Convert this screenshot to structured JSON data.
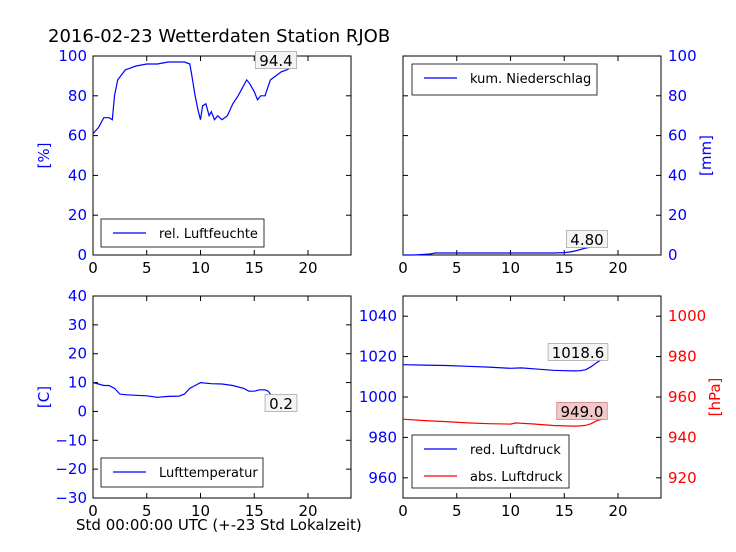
{
  "figure": {
    "title": "2016-02-23 Wetterdaten Station RJOB",
    "xlabel": "Std 00:00:00 UTC (+-23 Std Lokalzeit)",
    "colors": {
      "blue": "#0000ff",
      "red": "#ff0000",
      "annot_fill": "#f2c9c9"
    }
  },
  "chart_data": [
    {
      "type": "line",
      "xlim": [
        0,
        24
      ],
      "xticks": [
        "0",
        "5",
        "10",
        "15",
        "20"
      ],
      "ylim": [
        0,
        100
      ],
      "yticks": [
        "0",
        "20",
        "40",
        "60",
        "80",
        "100"
      ],
      "ylabel": "[%]",
      "grid": false,
      "legend_position": "lower-left",
      "annotation": "94.4",
      "series": [
        {
          "name": "rel. Luftfeuchte",
          "color": "#0000ff",
          "x": [
            0,
            0.5,
            1,
            1.5,
            1.8,
            2,
            2.3,
            3,
            4,
            5,
            6,
            7,
            8,
            8.5,
            9,
            9.2,
            9.5,
            9.8,
            10,
            10.2,
            10.5,
            10.8,
            11,
            11.3,
            11.6,
            12,
            12.5,
            13,
            13.5,
            14,
            14.3,
            14.6,
            15,
            15.3,
            15.6,
            16,
            16.5,
            17,
            17.5,
            18,
            18.5
          ],
          "y": [
            61,
            64,
            69,
            69,
            68,
            80,
            88,
            93,
            95,
            96,
            96,
            97,
            97,
            97,
            96,
            90,
            80,
            72,
            68,
            75,
            76,
            70,
            72,
            68,
            70,
            68,
            70,
            76,
            80,
            85,
            88,
            86,
            82,
            78,
            80,
            80,
            88,
            90,
            92,
            93,
            94.4
          ]
        }
      ]
    },
    {
      "type": "line",
      "xlim": [
        0,
        24
      ],
      "xticks": [
        "0",
        "5",
        "10",
        "15",
        "20"
      ],
      "ylim": [
        0,
        100
      ],
      "yticks": [
        "0",
        "20",
        "40",
        "60",
        "80",
        "100"
      ],
      "ylabel": "[mm]",
      "yaxis_side": "right",
      "grid": false,
      "legend_position": "upper-left",
      "annotation": "4.80",
      "series": [
        {
          "name": "kum. Niederschlag",
          "color": "#0000ff",
          "x": [
            0,
            1,
            2,
            2.5,
            3,
            5,
            10,
            14,
            15,
            15.5,
            16,
            17,
            18,
            18.5
          ],
          "y": [
            0,
            0,
            0.3,
            0.5,
            1,
            1,
            1,
            1,
            1.2,
            1.5,
            2,
            3.5,
            4.5,
            4.8
          ]
        }
      ]
    },
    {
      "type": "line",
      "xlim": [
        0,
        24
      ],
      "xticks": [
        "0",
        "5",
        "10",
        "15",
        "20"
      ],
      "ylim": [
        -30,
        40
      ],
      "yticks": [
        "−30",
        "−20",
        "−10",
        "0",
        "10",
        "20",
        "30",
        "40"
      ],
      "ylabel": "[C]",
      "grid": false,
      "legend_position": "lower-left",
      "annotation": "0.2",
      "series": [
        {
          "name": "Lufttemperatur",
          "color": "#0000ff",
          "x": [
            0,
            0.5,
            1,
            1.5,
            2,
            2.5,
            3,
            4,
            5,
            6,
            7,
            8,
            8.5,
            9,
            9.5,
            10,
            11,
            12,
            13,
            14,
            14.5,
            15,
            15.5,
            16,
            16.3,
            16.6,
            16.9
          ],
          "y": [
            10,
            9.5,
            9,
            9,
            8,
            6,
            5.8,
            5.6,
            5.4,
            4.9,
            5.2,
            5.3,
            6,
            8,
            9,
            10,
            9.6,
            9.5,
            9,
            8,
            7,
            7,
            7.5,
            7.5,
            7,
            5.5,
            2
          ]
        }
      ]
    },
    {
      "type": "line",
      "xlim": [
        0,
        24
      ],
      "xticks": [
        "0",
        "5",
        "10",
        "15",
        "20"
      ],
      "ylim": [
        950,
        1050
      ],
      "yticks": [
        "960",
        "980",
        "1000",
        "1020",
        "1040"
      ],
      "y2lim": [
        910,
        1010
      ],
      "y2ticks": [
        "920",
        "940",
        "960",
        "980",
        "1000"
      ],
      "y2label": "[hPa]",
      "grid": false,
      "legend_position": "lower-left",
      "series": [
        {
          "name": "red. Luftdruck",
          "color": "#0000ff",
          "axis": "left",
          "annotation": "1018.6",
          "x": [
            0,
            2,
            4,
            6,
            8,
            10,
            11,
            12,
            14,
            15,
            16,
            16.5,
            17,
            17.5,
            18,
            18.5
          ],
          "y": [
            1016,
            1015.8,
            1015.6,
            1015.2,
            1014.8,
            1014.2,
            1014.4,
            1014,
            1013.2,
            1013,
            1012.9,
            1013,
            1013.5,
            1015,
            1017,
            1018.6
          ]
        },
        {
          "name": "abs. Luftdruck",
          "color": "#ff0000",
          "axis": "right",
          "annotation": "949.0",
          "x": [
            0,
            2,
            4,
            6,
            8,
            10,
            10.5,
            11,
            12,
            14,
            15,
            16,
            16.5,
            17,
            17.5,
            18,
            18.5
          ],
          "y": [
            949,
            948.3,
            947.8,
            947.2,
            946.8,
            946.6,
            947.2,
            947,
            946.7,
            945.9,
            945.7,
            945.6,
            945.7,
            946,
            946.8,
            948.2,
            949
          ]
        }
      ]
    }
  ]
}
